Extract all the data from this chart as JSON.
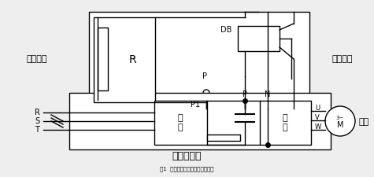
{
  "bg_color": "#eeeeee",
  "line_color": "#000000",
  "title_bottom": "通用变频器",
  "label_brake_resistor": "制动电阻",
  "label_brake_unit": "制动单元",
  "label_motor": "电机",
  "label_rectifier": "整\n流",
  "label_inverter": "逆\n变",
  "label_R": "R",
  "label_DB": "DB",
  "label_P_brake": "P",
  "label_P1": "P1",
  "label_N": "N",
  "label_P_bus": "P",
  "label_RST": [
    "R",
    "S",
    "T"
  ],
  "label_UVW": [
    "U",
    "V",
    "W"
  ],
  "figsize": [
    4.75,
    2.25
  ],
  "dpi": 100
}
